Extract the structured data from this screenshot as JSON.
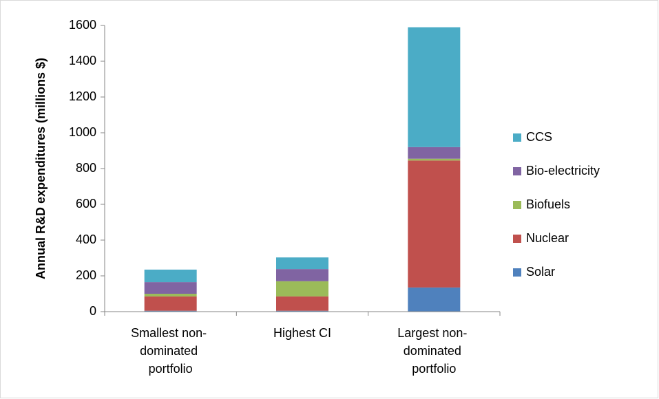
{
  "chart_data": {
    "type": "stacked_bar",
    "y_label": "Annual R&D expenditures (millions $)",
    "categories": [
      "Smallest non-\ndominated\nportfolio",
      "Highest CI",
      "Largest non-\ndominated\nportfolio"
    ],
    "series": [
      {
        "name": "Solar",
        "color": "#4f81bd",
        "values": [
          5,
          5,
          135
        ]
      },
      {
        "name": "Nuclear",
        "color": "#c0504d",
        "values": [
          80,
          80,
          710
        ]
      },
      {
        "name": "Biofuels",
        "color": "#9bbb59",
        "values": [
          15,
          85,
          10
        ]
      },
      {
        "name": "Bio-electricity",
        "color": "#8064a2",
        "values": [
          65,
          68,
          65
        ]
      },
      {
        "name": "CCS",
        "color": "#4bacc6",
        "values": [
          70,
          65,
          670
        ]
      }
    ],
    "ylim": [
      0,
      1600
    ],
    "yticks": [
      0,
      200,
      400,
      600,
      800,
      1000,
      1200,
      1400,
      1600
    ],
    "grid": false,
    "legend": "right"
  }
}
